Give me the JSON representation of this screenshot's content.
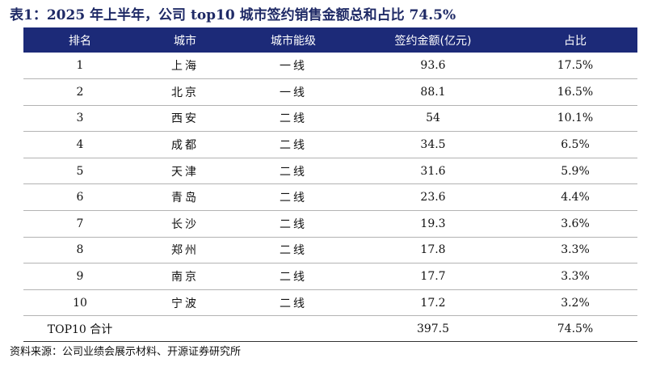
{
  "title": "表1：2025 年上半年，公司 top10 城市签约销售金额总和占比 74.5%",
  "headers": {
    "rank": "排名",
    "city": "城市",
    "tier": "城市能级",
    "amount": "签约金额(亿元)",
    "share": "占比"
  },
  "rows": [
    {
      "rank": "1",
      "city": "上海",
      "tier": "一线",
      "amount": "93.6",
      "share": "17.5%"
    },
    {
      "rank": "2",
      "city": "北京",
      "tier": "一线",
      "amount": "88.1",
      "share": "16.5%"
    },
    {
      "rank": "3",
      "city": "西安",
      "tier": "二线",
      "amount": "54",
      "share": "10.1%"
    },
    {
      "rank": "4",
      "city": "成都",
      "tier": "二线",
      "amount": "34.5",
      "share": "6.5%"
    },
    {
      "rank": "5",
      "city": "天津",
      "tier": "二线",
      "amount": "31.6",
      "share": "5.9%"
    },
    {
      "rank": "6",
      "city": "青岛",
      "tier": "二线",
      "amount": "23.6",
      "share": "4.4%"
    },
    {
      "rank": "7",
      "city": "长沙",
      "tier": "二线",
      "amount": "19.3",
      "share": "3.6%"
    },
    {
      "rank": "8",
      "city": "郑州",
      "tier": "二线",
      "amount": "17.8",
      "share": "3.3%"
    },
    {
      "rank": "9",
      "city": "南京",
      "tier": "二线",
      "amount": "17.7",
      "share": "3.3%"
    },
    {
      "rank": "10",
      "city": "宁波",
      "tier": "二线",
      "amount": "17.2",
      "share": "3.2%"
    }
  ],
  "total": {
    "label": "TOP10 合计",
    "amount": "397.5",
    "share": "74.5%"
  },
  "source": "资料来源：公司业绩会展示材料、开源证券研究所",
  "colors": {
    "title": "#1f2a66",
    "header_bg": "#1c2a78",
    "header_text": "#ffffff"
  }
}
